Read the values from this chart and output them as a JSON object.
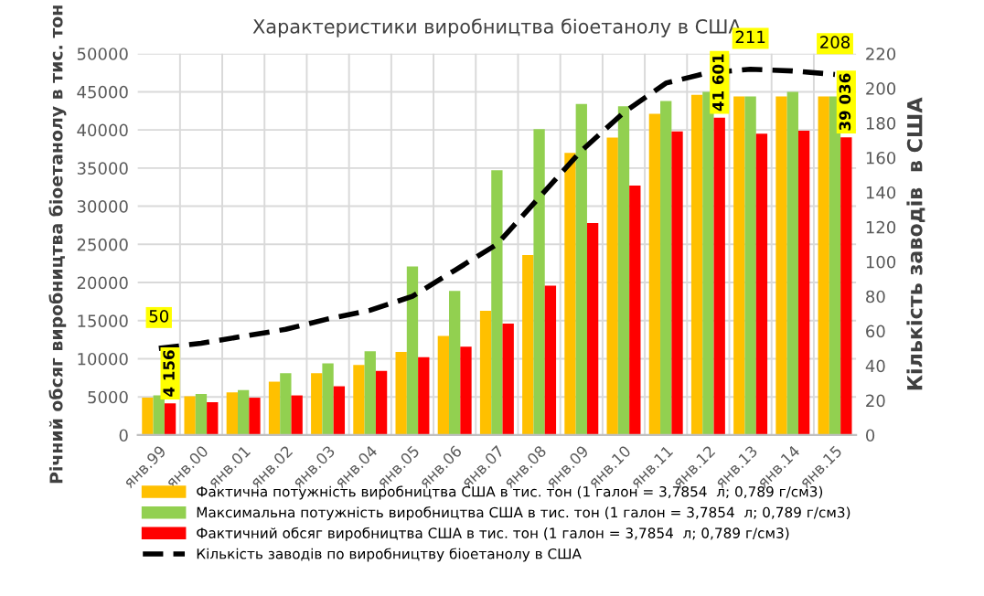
{
  "chart_data": {
    "type": "bar",
    "title": "Характеристики виробництва біоетанолу в США",
    "ylabel": "Річний обсяг виробництва біоетанолу в тис. тон",
    "y2label": "Кількість заводів  в США",
    "categories": [
      "янв.99",
      "янв.00",
      "янв.01",
      "янв.02",
      "янв.03",
      "янв.04",
      "янв.05",
      "янв.06",
      "янв.07",
      "янв.08",
      "янв.09",
      "янв.10",
      "янв.11",
      "янв.12",
      "янв.13",
      "янв.14",
      "янв.15"
    ],
    "series": [
      {
        "name": "Фактична потужність виробництва США в тис. тон (1 галон = 3,7854  л; 0,789 г/см3)",
        "color": "#ffc000",
        "values": [
          4900,
          5100,
          5600,
          7000,
          8100,
          9200,
          10900,
          13000,
          16300,
          23600,
          37000,
          39000,
          42100,
          44600,
          44400,
          44400,
          44400
        ]
      },
      {
        "name": "Максимальна потужність виробництва США в тис. тон (1 галон = 3,7854  л; 0,789 г/см3)",
        "color": "#92d050",
        "values": [
          5200,
          5400,
          5900,
          8100,
          9400,
          11000,
          22100,
          18900,
          34700,
          40100,
          43400,
          43100,
          43800,
          45000,
          44400,
          45000,
          44400
        ]
      },
      {
        "name": "Фактичний обсяг виробництва США в тис. тон (1 галон = 3,7854  л; 0,789 г/см3)",
        "color": "#ff0000",
        "values": [
          4156,
          4300,
          4900,
          5200,
          6400,
          8400,
          10200,
          11600,
          14600,
          19600,
          27800,
          32700,
          39800,
          41601,
          39500,
          39900,
          39036
        ],
        "value_labels": [
          "4 156",
          null,
          null,
          null,
          null,
          null,
          null,
          null,
          null,
          null,
          null,
          null,
          null,
          "41 601",
          null,
          null,
          "39 036"
        ]
      },
      {
        "name": "Кількість заводів по виробництву біоетанолу в США",
        "color": "#000000",
        "type": "line",
        "axis": "y2",
        "line_style": "dashed",
        "values": [
          50,
          53,
          57,
          61,
          67,
          72,
          80,
          95,
          110,
          137,
          164,
          186,
          203,
          209,
          211,
          210,
          208
        ],
        "value_labels": [
          "50",
          null,
          null,
          null,
          null,
          null,
          null,
          null,
          null,
          null,
          null,
          null,
          null,
          null,
          "211",
          null,
          "208"
        ]
      }
    ],
    "ylim": [
      0,
      50000
    ],
    "yticks": [
      0,
      5000,
      10000,
      15000,
      20000,
      25000,
      30000,
      35000,
      40000,
      45000,
      50000
    ],
    "y2lim": [
      0,
      220
    ],
    "y2ticks": [
      0,
      20,
      40,
      60,
      80,
      100,
      120,
      140,
      160,
      180,
      200,
      220
    ],
    "grid": true,
    "legend": "bottom",
    "marker": "none"
  }
}
